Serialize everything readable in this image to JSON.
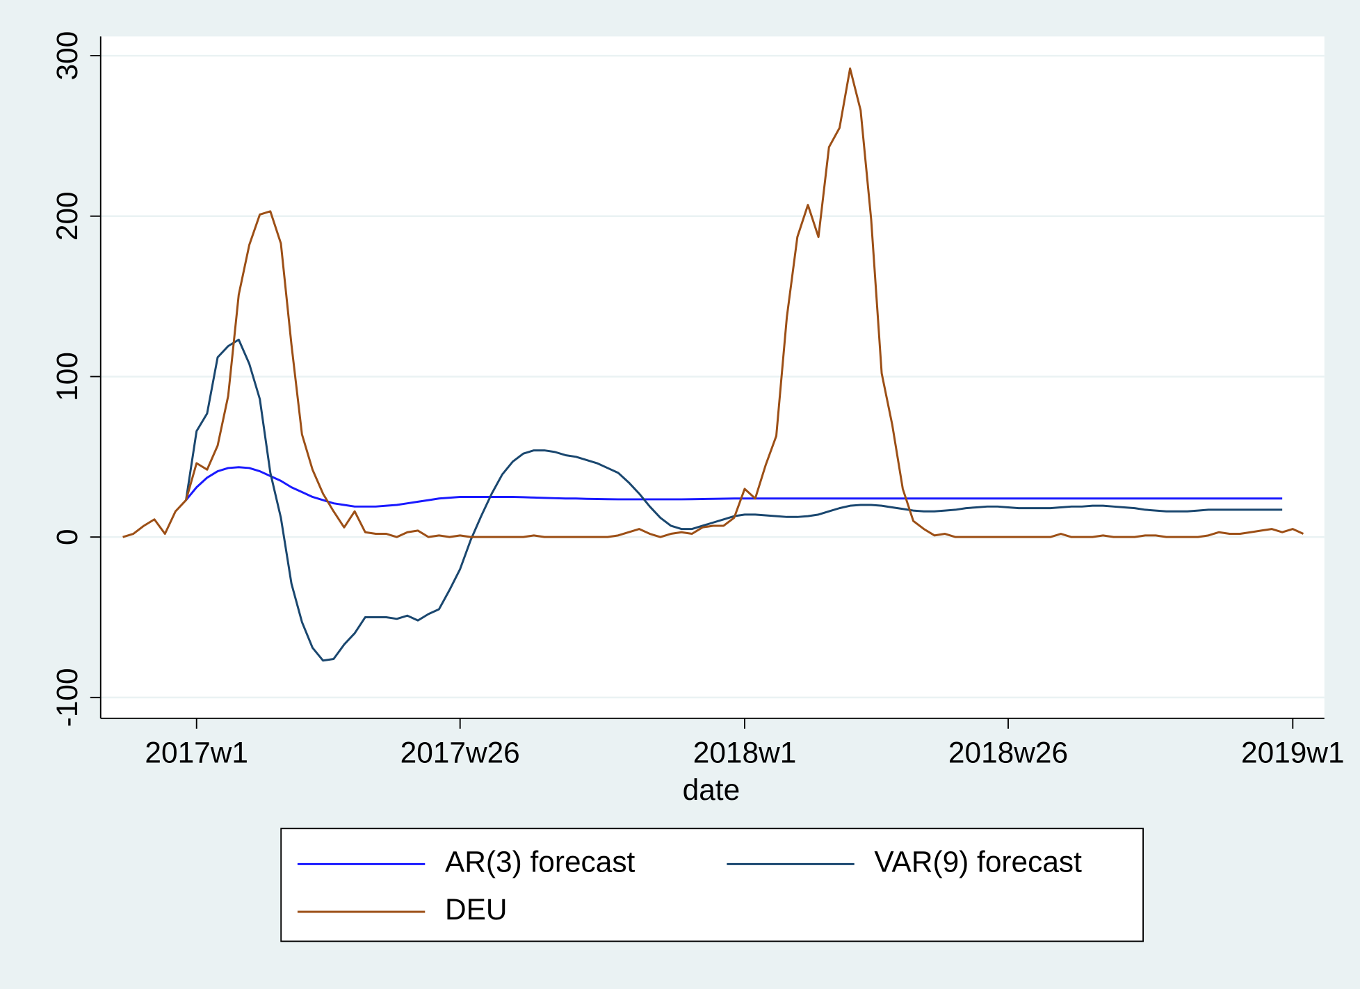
{
  "chart_data": {
    "type": "line",
    "x_label": "date",
    "x": [
      2957,
      2958,
      2959,
      2960,
      2961,
      2962,
      2963,
      2964,
      2965,
      2966,
      2967,
      2968,
      2969,
      2970,
      2971,
      2972,
      2973,
      2974,
      2975,
      2976,
      2977,
      2978,
      2979,
      2980,
      2981,
      2982,
      2983,
      2984,
      2985,
      2986,
      2987,
      2988,
      2989,
      2990,
      2991,
      2992,
      2993,
      2994,
      2995,
      2996,
      2997,
      2998,
      2999,
      3000,
      3001,
      3002,
      3003,
      3004,
      3005,
      3006,
      3007,
      3008,
      3009,
      3010,
      3011,
      3012,
      3013,
      3014,
      3015,
      3016,
      3017,
      3018,
      3019,
      3020,
      3021,
      3022,
      3023,
      3024,
      3025,
      3026,
      3027,
      3028,
      3029,
      3030,
      3031,
      3032,
      3033,
      3034,
      3035,
      3036,
      3037,
      3038,
      3039,
      3040,
      3041,
      3042,
      3043,
      3044,
      3045,
      3046,
      3047,
      3048,
      3049,
      3050,
      3051,
      3052,
      3053,
      3054,
      3055,
      3056,
      3057,
      3058,
      3059,
      3060,
      3061,
      3062,
      3063,
      3064,
      3065,
      3066,
      3067,
      3068,
      3069
    ],
    "series": [
      {
        "name": "AR(3) forecast",
        "color": "#1a1aff",
        "values": [
          null,
          null,
          null,
          null,
          null,
          null,
          23,
          31,
          37,
          41,
          43,
          43.5,
          43,
          41,
          38,
          35,
          31,
          28,
          25,
          23,
          21,
          20,
          19,
          19,
          19,
          19.5,
          20,
          21,
          22,
          23,
          24,
          24.5,
          25,
          25,
          25,
          25,
          25,
          25,
          24.8,
          24.6,
          24.4,
          24.2,
          24,
          24,
          23.8,
          23.7,
          23.6,
          23.5,
          23.5,
          23.5,
          23.5,
          23.5,
          23.5,
          23.5,
          23.6,
          23.7,
          23.8,
          23.9,
          24,
          24,
          24,
          24,
          24,
          24,
          24,
          24,
          24,
          24,
          24,
          24,
          24,
          24,
          24,
          24,
          24,
          24,
          24,
          24,
          24,
          24,
          24,
          24,
          24,
          24,
          24,
          24,
          24,
          24,
          24,
          24,
          24,
          24,
          24,
          24,
          24,
          24,
          24,
          24,
          24,
          24,
          24,
          24,
          24,
          24,
          24,
          24,
          24,
          24,
          24,
          24,
          24,
          null,
          null
        ]
      },
      {
        "name": "VAR(9) forecast",
        "color": "#1a476f",
        "values": [
          null,
          null,
          null,
          null,
          null,
          null,
          23,
          66,
          77,
          112,
          119,
          123,
          108,
          86,
          40,
          12,
          -29,
          -53,
          -69,
          -77,
          -76,
          -67,
          -60,
          -50,
          -50,
          -50,
          -51,
          -49,
          -52,
          -48,
          -45,
          -33,
          -20,
          -2,
          13,
          27,
          39,
          47,
          52,
          54,
          54,
          53,
          51,
          50,
          48,
          46,
          43,
          40,
          34,
          27,
          19,
          12,
          7,
          5,
          5,
          7,
          9,
          11,
          13,
          14,
          14,
          13.5,
          13,
          12.5,
          12.5,
          13,
          14,
          16,
          18,
          19.5,
          20,
          20,
          19.5,
          18.5,
          17.5,
          16.5,
          16,
          16,
          16.5,
          17,
          18,
          18.5,
          19,
          19,
          18.5,
          18,
          18,
          18,
          18,
          18.5,
          19,
          19,
          19.5,
          19.5,
          19,
          18.5,
          18,
          17,
          16.5,
          16,
          16,
          16,
          16.5,
          17,
          17,
          17,
          17,
          17,
          17,
          17,
          17,
          null,
          null
        ]
      },
      {
        "name": "DEU",
        "color": "#9c4f16",
        "values": [
          0,
          2,
          7,
          11,
          2,
          16,
          23,
          46,
          42,
          57,
          88,
          151,
          182,
          201,
          203,
          183,
          120,
          64,
          42,
          27,
          16,
          6,
          16,
          3,
          2,
          2,
          0,
          3,
          4,
          0,
          1,
          0,
          1,
          0,
          0,
          0,
          0,
          0,
          0,
          1,
          0,
          0,
          0,
          0,
          0,
          0,
          0,
          1,
          3,
          5,
          2,
          0,
          2,
          3,
          2,
          6,
          7,
          7,
          12,
          30,
          24,
          45,
          63,
          137,
          187,
          207,
          187,
          243,
          255,
          292,
          266,
          198,
          102,
          70,
          30,
          10,
          5,
          1,
          2,
          0,
          0,
          0,
          0,
          0,
          0,
          0,
          0,
          0,
          0,
          2,
          0,
          0,
          0,
          1,
          0,
          0,
          0,
          1,
          1,
          0,
          0,
          0,
          0,
          1,
          3,
          2,
          2,
          3,
          4,
          5,
          3,
          5,
          2
        ]
      }
    ],
    "xlim": [
      2954.9,
      3071
    ],
    "xticks": [
      {
        "value": 2964,
        "label": "2017w1"
      },
      {
        "value": 2989,
        "label": "2017w26"
      },
      {
        "value": 3016,
        "label": "2018w1"
      },
      {
        "value": 3041,
        "label": "2018w26"
      },
      {
        "value": 3068,
        "label": "2019w1"
      }
    ],
    "ylim": [
      -113,
      312
    ],
    "yticks": [
      -100,
      0,
      100,
      200,
      300
    ],
    "grid": true,
    "legend": "bottom"
  }
}
